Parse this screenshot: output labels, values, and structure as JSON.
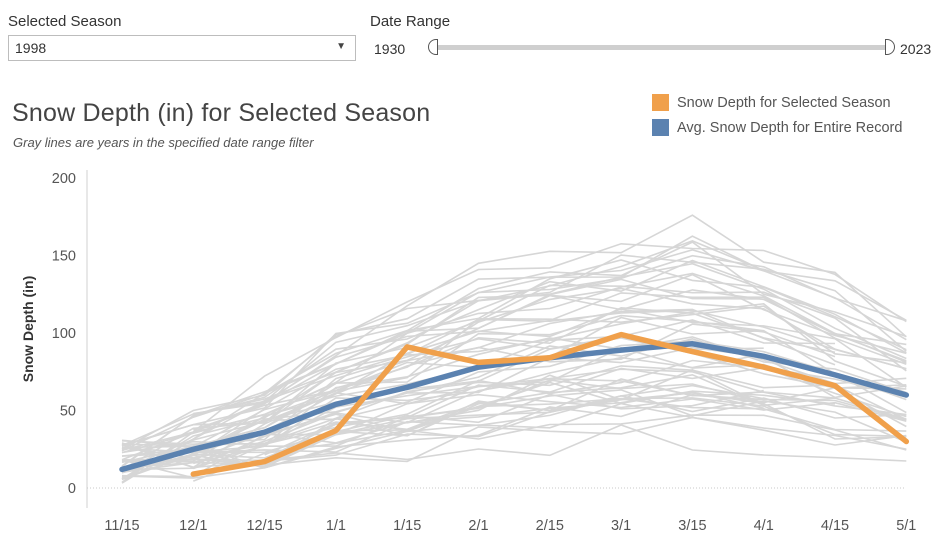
{
  "filters": {
    "season_label": "Selected Season",
    "season_value": "1998",
    "range_label": "Date Range",
    "range_min": "1930",
    "range_max": "2023"
  },
  "chart_title": "Snow Depth (in) for Selected Season",
  "chart_subtitle": "Gray lines are years in the specified date range filter",
  "legend": [
    {
      "label": "Snow Depth for Selected Season",
      "color": "#f0a04b"
    },
    {
      "label": "Avg. Snow Depth for Entire Record",
      "color": "#5b82b0"
    }
  ],
  "colors": {
    "selected": "#f0a04b",
    "average": "#5b82b0",
    "background_lines": "#d6d6d6",
    "axis_text": "#555555"
  },
  "chart_data": {
    "type": "line",
    "title": "Snow Depth (in) for Selected Season",
    "subtitle": "Gray lines are years in the specified date range filter",
    "ylabel": "Snow Depth (in)",
    "xlabel": "",
    "categories": [
      "11/15",
      "12/1",
      "12/15",
      "1/1",
      "1/15",
      "2/1",
      "2/15",
      "3/1",
      "3/15",
      "4/1",
      "4/15",
      "5/1"
    ],
    "yticks": [
      0,
      50,
      100,
      150,
      200
    ],
    "ylim": [
      0,
      200
    ],
    "series": [
      {
        "name": "Snow Depth for Selected Season",
        "season": "1998",
        "values": [
          null,
          9,
          17,
          37,
          91,
          81,
          84,
          99,
          88,
          78,
          66,
          30
        ]
      },
      {
        "name": "Avg. Snow Depth for Entire Record",
        "values": [
          12,
          25,
          36,
          54,
          65,
          78,
          84,
          89,
          93,
          85,
          73,
          60
        ]
      }
    ],
    "background_series_count": 60
  }
}
